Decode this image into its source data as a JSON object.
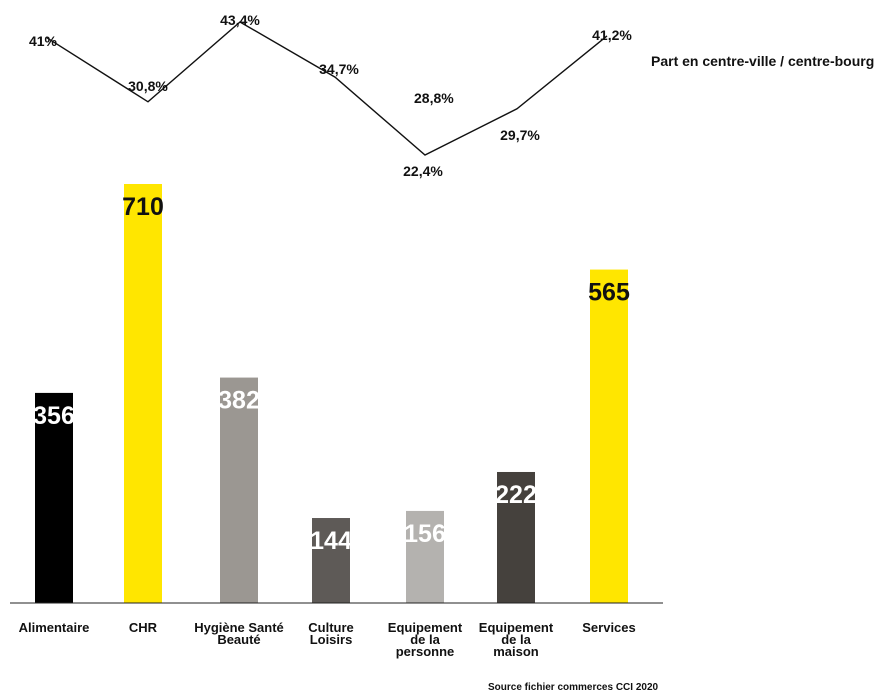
{
  "chart_data": {
    "type": "bar",
    "categories": [
      [
        "Alimentaire"
      ],
      [
        "CHR"
      ],
      [
        "Hygiène Santé",
        "Beauté"
      ],
      [
        "Culture",
        "Loisirs"
      ],
      [
        "Equipement",
        "de la",
        "personne"
      ],
      [
        "Equipement",
        "de la",
        "maison"
      ],
      [
        "Services"
      ]
    ],
    "values": [
      356,
      710,
      382,
      144,
      156,
      222,
      565
    ],
    "value_labels": [
      "356",
      "710",
      "382",
      "144",
      "156",
      "222",
      "565"
    ],
    "bar_colors": [
      "#000000",
      "#ffe600",
      "#9b9792",
      "#5e5a57",
      "#b4b2af",
      "#45413d",
      "#ffe600"
    ],
    "value_label_colors": [
      "#ffffff",
      "#111111",
      "#ffffff",
      "#ffffff",
      "#ffffff",
      "#ffffff",
      "#111111"
    ],
    "line_series": {
      "name": "Part en centre-ville / centre-bourg",
      "values": [
        41,
        30.8,
        43.4,
        34.7,
        22.4,
        29.7,
        41.2
      ],
      "labels": [
        "41%",
        "30,8%",
        "43,4%",
        "34,7%",
        "22,4%",
        "29,7%",
        "41,2%"
      ]
    },
    "extra_label": "28,8%",
    "source": "Source fichier commerces CCI 2020"
  }
}
